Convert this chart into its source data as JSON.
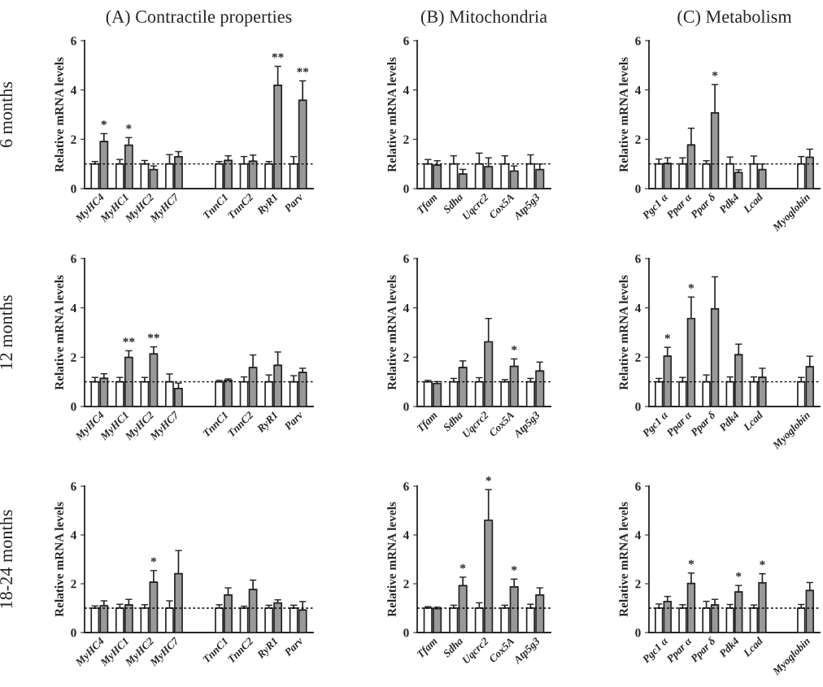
{
  "chart_data": [
    {
      "type": "bar",
      "title": "(A) Contractile properties",
      "ylabel": "Relative mRNA levels",
      "annotations": [
        "6 months"
      ],
      "categories": [
        "MyHC4",
        "MyHC1",
        "MyHC2",
        "MyHC7",
        null,
        "TnnC1",
        "TnnC2",
        "RyR1",
        "Parv"
      ],
      "ylim": [
        0,
        6
      ],
      "yticks": [
        0,
        2,
        4,
        6
      ],
      "ref_lines": [
        {
          "axis": "y",
          "value": 1,
          "line_style": "dotted",
          "color": "#000000"
        }
      ],
      "series": [
        {
          "color": "#ffffff",
          "values": [
            1,
            1,
            1,
            1,
            null,
            1,
            1,
            1,
            1
          ],
          "errors": [
            0.1,
            0.18,
            0.14,
            0.38,
            null,
            0.1,
            0.3,
            0.1,
            0.3
          ]
        },
        {
          "color": "#999999",
          "values": [
            1.91,
            1.76,
            0.77,
            1.29,
            null,
            1.14,
            1.11,
            4.19,
            3.58
          ],
          "errors": [
            0.32,
            0.31,
            0.15,
            0.21,
            null,
            0.19,
            0.25,
            0.77,
            0.79
          ],
          "value_labels": [
            "*",
            "*",
            null,
            null,
            null,
            null,
            null,
            "**",
            "**"
          ]
        }
      ]
    },
    {
      "type": "bar",
      "title": "(B) Mitochondria",
      "ylabel": "Relative mRNA levels",
      "categories": [
        "Tfam",
        "Sdha",
        "Uqcrc2",
        "Cox5A",
        "Atp5g3"
      ],
      "ylim": [
        0,
        6
      ],
      "yticks": [
        0,
        2,
        4,
        6
      ],
      "ref_lines": [
        {
          "axis": "y",
          "value": 1,
          "line_style": "dotted",
          "color": "#000000"
        }
      ],
      "series": [
        {
          "color": "#ffffff",
          "values": [
            1,
            1,
            1,
            1,
            1
          ],
          "errors": [
            0.18,
            0.33,
            0.44,
            0.33,
            0.37
          ]
        },
        {
          "color": "#999999",
          "values": [
            0.95,
            0.59,
            0.89,
            0.71,
            0.77
          ],
          "errors": [
            0.18,
            0.19,
            0.36,
            0.21,
            0.23
          ]
        }
      ]
    },
    {
      "type": "bar",
      "title": "(C) Metabolism",
      "ylabel": "Relative mRNA levels",
      "categories": [
        "Pgc1 α",
        "Ppar α",
        "Ppar δ",
        "Pdk4",
        "Lcad",
        null,
        "Myoglobin"
      ],
      "ylim": [
        0,
        6
      ],
      "yticks": [
        0,
        2,
        4,
        6
      ],
      "ref_lines": [
        {
          "axis": "y",
          "value": 1,
          "line_style": "dotted",
          "color": "#000000"
        }
      ],
      "series": [
        {
          "color": "#ffffff",
          "values": [
            1,
            1,
            1,
            1,
            1,
            null,
            1
          ],
          "errors": [
            0.2,
            0.25,
            0.13,
            0.28,
            0.32,
            null,
            0.3
          ]
        },
        {
          "color": "#999999",
          "values": [
            1.02,
            1.77,
            3.07,
            0.65,
            0.77,
            null,
            1.27
          ],
          "errors": [
            0.23,
            0.68,
            1.15,
            0.11,
            0.23,
            null,
            0.33
          ],
          "value_labels": [
            null,
            null,
            "*",
            null,
            null,
            null,
            null
          ]
        }
      ]
    },
    {
      "type": "bar",
      "ylabel": "Relative mRNA levels",
      "annotations": [
        "12 months"
      ],
      "categories": [
        "MyHC4",
        "MyHC1",
        "MyHC2",
        "MyHC7",
        null,
        "TnnC1",
        "TnnC2",
        "RyR1",
        "Parv"
      ],
      "ylim": [
        0,
        6
      ],
      "yticks": [
        0,
        2,
        4,
        6
      ],
      "ref_lines": [
        {
          "axis": "y",
          "value": 1,
          "line_style": "dotted",
          "color": "#000000"
        }
      ],
      "series": [
        {
          "color": "#ffffff",
          "values": [
            1,
            1,
            1,
            1,
            null,
            1,
            1,
            1,
            1
          ],
          "errors": [
            0.18,
            0.18,
            0.18,
            0.32,
            null,
            0.06,
            0.2,
            0.28,
            0.25
          ]
        },
        {
          "color": "#999999",
          "values": [
            1.14,
            1.99,
            2.13,
            0.73,
            null,
            1.06,
            1.58,
            1.67,
            1.38
          ],
          "errors": [
            0.19,
            0.27,
            0.29,
            0.22,
            null,
            0.06,
            0.51,
            0.54,
            0.17
          ],
          "value_labels": [
            null,
            "**",
            "**",
            null,
            null,
            null,
            null,
            null,
            null
          ]
        }
      ]
    },
    {
      "type": "bar",
      "ylabel": "Relative mRNA levels",
      "categories": [
        "Tfam",
        "Sdha",
        "Uqcrc2",
        "Cox5A",
        "Atp5g3"
      ],
      "ylim": [
        0,
        6
      ],
      "yticks": [
        0,
        2,
        4,
        6
      ],
      "ref_lines": [
        {
          "axis": "y",
          "value": 1,
          "line_style": "dotted",
          "color": "#000000"
        }
      ],
      "series": [
        {
          "color": "#ffffff",
          "values": [
            1,
            1,
            1,
            1,
            1
          ],
          "errors": [
            0.06,
            0.14,
            0.17,
            0.09,
            0.14
          ]
        },
        {
          "color": "#999999",
          "values": [
            0.93,
            1.58,
            2.62,
            1.63,
            1.44
          ],
          "errors": [
            0.08,
            0.27,
            0.95,
            0.3,
            0.36
          ],
          "value_labels": [
            null,
            null,
            null,
            "*",
            null
          ]
        }
      ]
    },
    {
      "type": "bar",
      "ylabel": "Relative mRNA levels",
      "categories": [
        "Pgc1 α",
        "Ppar α",
        "Ppar δ",
        "Pdk4",
        "Lcad",
        null,
        "Myoglobin"
      ],
      "ylim": [
        0,
        6
      ],
      "yticks": [
        0,
        2,
        4,
        6
      ],
      "ref_lines": [
        {
          "axis": "y",
          "value": 1,
          "line_style": "dotted",
          "color": "#000000"
        }
      ],
      "series": [
        {
          "color": "#ffffff",
          "values": [
            1,
            1,
            1,
            1,
            1,
            null,
            1
          ],
          "errors": [
            0.14,
            0.18,
            0.28,
            0.2,
            0.2,
            null,
            0.18
          ]
        },
        {
          "color": "#999999",
          "values": [
            2.04,
            3.57,
            3.96,
            2.1,
            1.18,
            null,
            1.61
          ],
          "errors": [
            0.36,
            0.87,
            1.3,
            0.43,
            0.37,
            null,
            0.43
          ],
          "value_labels": [
            "*",
            "*",
            null,
            null,
            null,
            null,
            null
          ]
        }
      ]
    },
    {
      "type": "bar",
      "ylabel": "Relative mRNA levels",
      "annotations": [
        "18-24 months"
      ],
      "categories": [
        "MyHC4",
        "MyHC1",
        "MyHC2",
        "MyHC7",
        null,
        "TnnC1",
        "TnnC2",
        "RyR1",
        "Parv"
      ],
      "ylim": [
        0,
        6
      ],
      "yticks": [
        0,
        2,
        4,
        6
      ],
      "ref_lines": [
        {
          "axis": "y",
          "value": 1,
          "line_style": "dotted",
          "color": "#000000"
        }
      ],
      "series": [
        {
          "color": "#ffffff",
          "values": [
            1,
            1,
            1,
            1,
            null,
            1,
            1,
            1,
            1
          ],
          "errors": [
            0.09,
            0.16,
            0.14,
            0.3,
            null,
            0.14,
            0.08,
            0.12,
            0.12
          ]
        },
        {
          "color": "#999999",
          "values": [
            1.1,
            1.13,
            2.06,
            2.41,
            null,
            1.54,
            1.76,
            1.21,
            0.92
          ],
          "errors": [
            0.2,
            0.23,
            0.48,
            0.95,
            null,
            0.29,
            0.39,
            0.13,
            0.35
          ],
          "value_labels": [
            null,
            null,
            "*",
            null,
            null,
            null,
            null,
            null,
            null
          ]
        }
      ]
    },
    {
      "type": "bar",
      "ylabel": "Relative mRNA levels",
      "categories": [
        "Tfam",
        "Sdha",
        "Uqcrc2",
        "Cox5A",
        "Atp5g3"
      ],
      "ylim": [
        0,
        6
      ],
      "yticks": [
        0,
        2,
        4,
        6
      ],
      "ref_lines": [
        {
          "axis": "y",
          "value": 1,
          "line_style": "dotted",
          "color": "#000000"
        }
      ],
      "series": [
        {
          "color": "#ffffff",
          "values": [
            1,
            1,
            1,
            1,
            1
          ],
          "errors": [
            0.06,
            0.12,
            0.22,
            0.12,
            0.16
          ]
        },
        {
          "color": "#999999",
          "values": [
            0.98,
            1.92,
            4.6,
            1.87,
            1.54
          ],
          "errors": [
            0.06,
            0.35,
            1.26,
            0.32,
            0.29
          ],
          "value_labels": [
            null,
            "*",
            "*",
            "*",
            null
          ]
        }
      ]
    },
    {
      "type": "bar",
      "ylabel": "Relative mRNA levels",
      "categories": [
        "Pgc1 α",
        "Ppar α",
        "Ppar δ",
        "Pdk4",
        "Lcad",
        null,
        "Myoglobin"
      ],
      "ylim": [
        0,
        6
      ],
      "yticks": [
        0,
        2,
        4,
        6
      ],
      "ref_lines": [
        {
          "axis": "y",
          "value": 1,
          "line_style": "dotted",
          "color": "#000000"
        }
      ],
      "series": [
        {
          "color": "#ffffff",
          "values": [
            1,
            1,
            1,
            1,
            1,
            null,
            1
          ],
          "errors": [
            0.17,
            0.14,
            0.28,
            0.15,
            0.13,
            null,
            0.15
          ]
        },
        {
          "color": "#999999",
          "values": [
            1.27,
            2.01,
            1.13,
            1.66,
            2.04,
            null,
            1.72
          ],
          "errors": [
            0.21,
            0.43,
            0.23,
            0.27,
            0.37,
            null,
            0.33
          ],
          "value_labels": [
            null,
            "*",
            null,
            "*",
            "*",
            null,
            null
          ]
        }
      ]
    }
  ]
}
